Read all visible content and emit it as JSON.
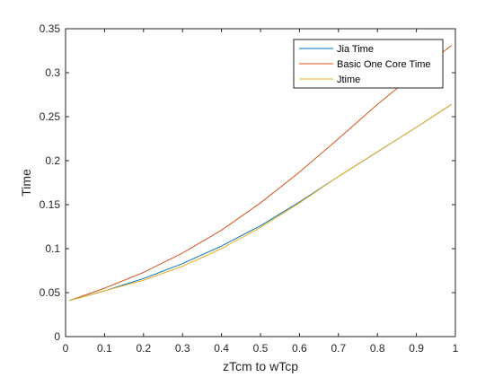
{
  "chart_data": {
    "type": "line",
    "title": "",
    "xlabel": "zTcm to wTcp",
    "ylabel": "Time",
    "xlim": [
      0,
      1
    ],
    "ylim": [
      0,
      0.35
    ],
    "xticks": [
      0,
      0.1,
      0.2,
      0.3,
      0.4,
      0.5,
      0.6,
      0.7,
      0.8,
      0.9,
      1
    ],
    "xtick_labels": [
      "0",
      "0.1",
      "0.2",
      "0.3",
      "0.4",
      "0.5",
      "0.6",
      "0.7",
      "0.8",
      "0.9",
      "1"
    ],
    "yticks": [
      0,
      0.05,
      0.1,
      0.15,
      0.2,
      0.25,
      0.3,
      0.35
    ],
    "ytick_labels": [
      "0",
      "0.05",
      "0.1",
      "0.15",
      "0.2",
      "0.25",
      "0.3",
      "0.35"
    ],
    "grid": false,
    "legend_position": "top-right",
    "series": [
      {
        "name": "Jia Time",
        "color": "#0072BD",
        "x": [
          0.01,
          0.1,
          0.2,
          0.3,
          0.4,
          0.5,
          0.6,
          0.7,
          0.8,
          0.9,
          0.99
        ],
        "y": [
          0.041,
          0.052,
          0.066,
          0.083,
          0.103,
          0.126,
          0.153,
          0.182,
          0.21,
          0.238,
          0.264
        ]
      },
      {
        "name": "Basic One Core Time",
        "color": "#D95319",
        "x": [
          0.01,
          0.1,
          0.2,
          0.3,
          0.4,
          0.5,
          0.6,
          0.7,
          0.8,
          0.9,
          0.99
        ],
        "y": [
          0.041,
          0.055,
          0.073,
          0.095,
          0.121,
          0.152,
          0.187,
          0.225,
          0.264,
          0.3,
          0.331
        ]
      },
      {
        "name": "Jtime",
        "color": "#EDB120",
        "x": [
          0.01,
          0.1,
          0.2,
          0.3,
          0.4,
          0.5,
          0.6,
          0.7,
          0.8,
          0.9,
          0.99
        ],
        "y": [
          0.041,
          0.052,
          0.064,
          0.08,
          0.1,
          0.124,
          0.152,
          0.182,
          0.21,
          0.238,
          0.264
        ]
      }
    ]
  }
}
